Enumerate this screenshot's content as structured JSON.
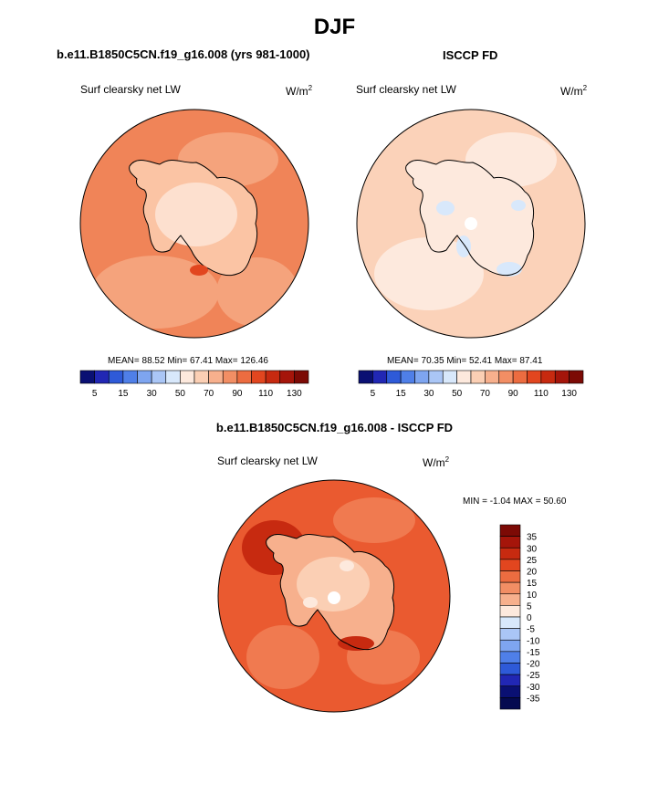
{
  "page": {
    "season": "DJF",
    "diff_title": "b.e11.B1850C5CN.f19_g16.008 - ISCCP FD"
  },
  "colors": {
    "ocean_model": "#f08458",
    "ocean_obs": "#fbd2b9",
    "ocean_diff": "#ea5a30",
    "coast": "#000000"
  },
  "panels": [
    {
      "case": "b.e11.B1850C5CN.f19_g16.008 (yrs 981-1000)",
      "variable": "Surf clearsky net LW",
      "units_base": "W/m",
      "units_exp": "2",
      "stats": "MEAN=  88.52  Min=  67.41  Max= 126.46"
    },
    {
      "case": "ISCCP FD",
      "variable": "Surf clearsky net LW",
      "units_base": "W/m",
      "units_exp": "2",
      "stats": "MEAN=  70.35  Min=  52.41  Max=  87.41"
    },
    {
      "case": "b.e11.B1850C5CN.f19_g16.008 - ISCCP FD",
      "variable": "Surf clearsky net LW",
      "units_base": "W/m",
      "units_exp": "2",
      "stats": "MIN =  -1.04 MAX =  50.60"
    }
  ],
  "chart_data": [
    {
      "type": "heatmap",
      "projection": "polar-stereographic (south pole)",
      "title": "Surf clearsky net LW",
      "subtitle": "b.e11.B1850C5CN.f19_g16.008 (yrs 981-1000)",
      "units": "W/m2",
      "mean": 88.52,
      "min": 67.41,
      "max": 126.46,
      "colorbar": {
        "orientation": "horizontal",
        "levels": [
          5,
          10,
          15,
          20,
          30,
          40,
          50,
          60,
          70,
          80,
          90,
          100,
          110,
          120,
          130
        ],
        "tick_labels": [
          "5",
          "15",
          "30",
          "50",
          "70",
          "90",
          "110",
          "130"
        ],
        "colors": [
          "#0a1073",
          "#2127b4",
          "#2e5ad8",
          "#4f7fe8",
          "#7ea5f0",
          "#aac6f6",
          "#d8e8fb",
          "#fde9dd",
          "#fbcfb4",
          "#f7b08d",
          "#f28e64",
          "#ec6c40",
          "#e2461f",
          "#c72a10",
          "#a5150a",
          "#7c0a05"
        ]
      }
    },
    {
      "type": "heatmap",
      "projection": "polar-stereographic (south pole)",
      "title": "Surf clearsky net LW",
      "subtitle": "ISCCP FD",
      "units": "W/m2",
      "mean": 70.35,
      "min": 52.41,
      "max": 87.41,
      "colorbar": {
        "orientation": "horizontal",
        "levels": [
          5,
          10,
          15,
          20,
          30,
          40,
          50,
          60,
          70,
          80,
          90,
          100,
          110,
          120,
          130
        ],
        "tick_labels": [
          "5",
          "15",
          "30",
          "50",
          "70",
          "90",
          "110",
          "130"
        ],
        "colors": [
          "#0a1073",
          "#2127b4",
          "#2e5ad8",
          "#4f7fe8",
          "#7ea5f0",
          "#aac6f6",
          "#d8e8fb",
          "#fde9dd",
          "#fbcfb4",
          "#f7b08d",
          "#f28e64",
          "#ec6c40",
          "#e2461f",
          "#c72a10",
          "#a5150a",
          "#7c0a05"
        ]
      }
    },
    {
      "type": "heatmap",
      "projection": "polar-stereographic (south pole)",
      "title": "Surf clearsky net LW",
      "subtitle": "b.e11.B1850C5CN.f19_g16.008 - ISCCP FD",
      "units": "W/m2",
      "min": -1.04,
      "max": 50.6,
      "colorbar": {
        "orientation": "vertical",
        "levels": [
          35,
          30,
          25,
          20,
          15,
          10,
          5,
          0,
          -5,
          -10,
          -15,
          -20,
          -25,
          -30,
          -35
        ],
        "tick_labels": [
          "35",
          "30",
          "25",
          "20",
          "15",
          "10",
          "5",
          "0",
          "-5",
          "-10",
          "-15",
          "-20",
          "-25",
          "-30",
          "-35"
        ],
        "colors": [
          "#7c0a05",
          "#a5150a",
          "#c72a10",
          "#e2461f",
          "#ec6c40",
          "#f28e64",
          "#f7b08d",
          "#fde9dd",
          "#d8e8fb",
          "#aac6f6",
          "#7ea5f0",
          "#4f7fe8",
          "#2e5ad8",
          "#2127b4",
          "#0a1073",
          "#050a50"
        ]
      }
    }
  ]
}
